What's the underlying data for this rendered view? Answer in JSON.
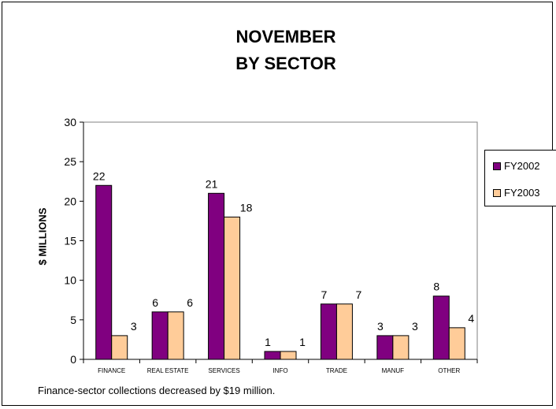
{
  "chart_data": {
    "type": "bar",
    "title": "NOVEMBER",
    "subtitle": "BY SECTOR",
    "ylabel": "$ MILLIONS",
    "xlabel": "",
    "ylim": [
      0,
      30
    ],
    "yticks": [
      0,
      5,
      10,
      15,
      20,
      25,
      30
    ],
    "categories": [
      "FINANCE",
      "REAL ESTATE",
      "SERVICES",
      "INFO",
      "TRADE",
      "MANUF",
      "OTHER"
    ],
    "series": [
      {
        "name": "FY2002",
        "color": "#800080",
        "values": [
          22,
          6,
          21,
          1,
          7,
          3,
          8
        ]
      },
      {
        "name": "FY2003",
        "color": "#FFCC99",
        "values": [
          3,
          6,
          18,
          1,
          7,
          3,
          4
        ]
      }
    ],
    "grid": false,
    "legend": "right"
  },
  "caption": "Finance-sector collections decreased by $19 million."
}
